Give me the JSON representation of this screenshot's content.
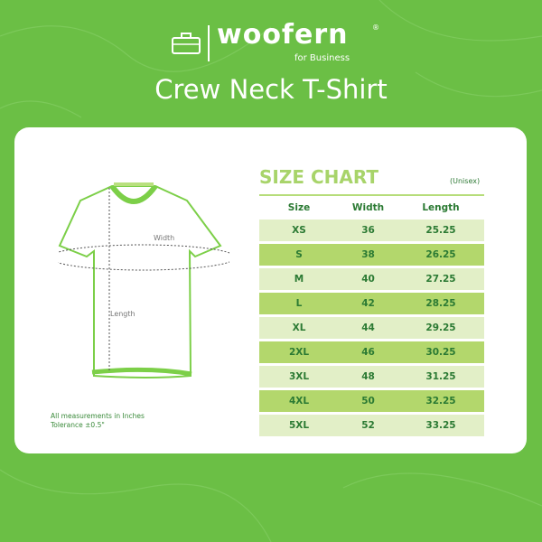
{
  "logo": {
    "brand": "woofern",
    "registered": "®",
    "tagline": "for Business"
  },
  "title": "Crew Neck T-Shirt",
  "diagram": {
    "width_label": "Width",
    "length_label": "Length"
  },
  "notes": [
    "All measurements in Inches",
    "Tolerance ±0.5\""
  ],
  "size_chart": {
    "title": "SIZE CHART",
    "subtitle": "(Unisex)",
    "headers": [
      "Size",
      "Width",
      "Length"
    ],
    "rows": [
      [
        "XS",
        "36",
        "25.25"
      ],
      [
        "S",
        "38",
        "26.25"
      ],
      [
        "M",
        "40",
        "27.25"
      ],
      [
        "L",
        "42",
        "28.25"
      ],
      [
        "XL",
        "44",
        "29.25"
      ],
      [
        "2XL",
        "46",
        "30.25"
      ],
      [
        "3XL",
        "48",
        "31.25"
      ],
      [
        "4XL",
        "50",
        "32.25"
      ],
      [
        "5XL",
        "52",
        "33.25"
      ]
    ]
  },
  "colors": {
    "background": "#6bbf45",
    "row_light": "#e2efc7",
    "row_dark": "#b3d76c",
    "text": "#2b7a33"
  }
}
